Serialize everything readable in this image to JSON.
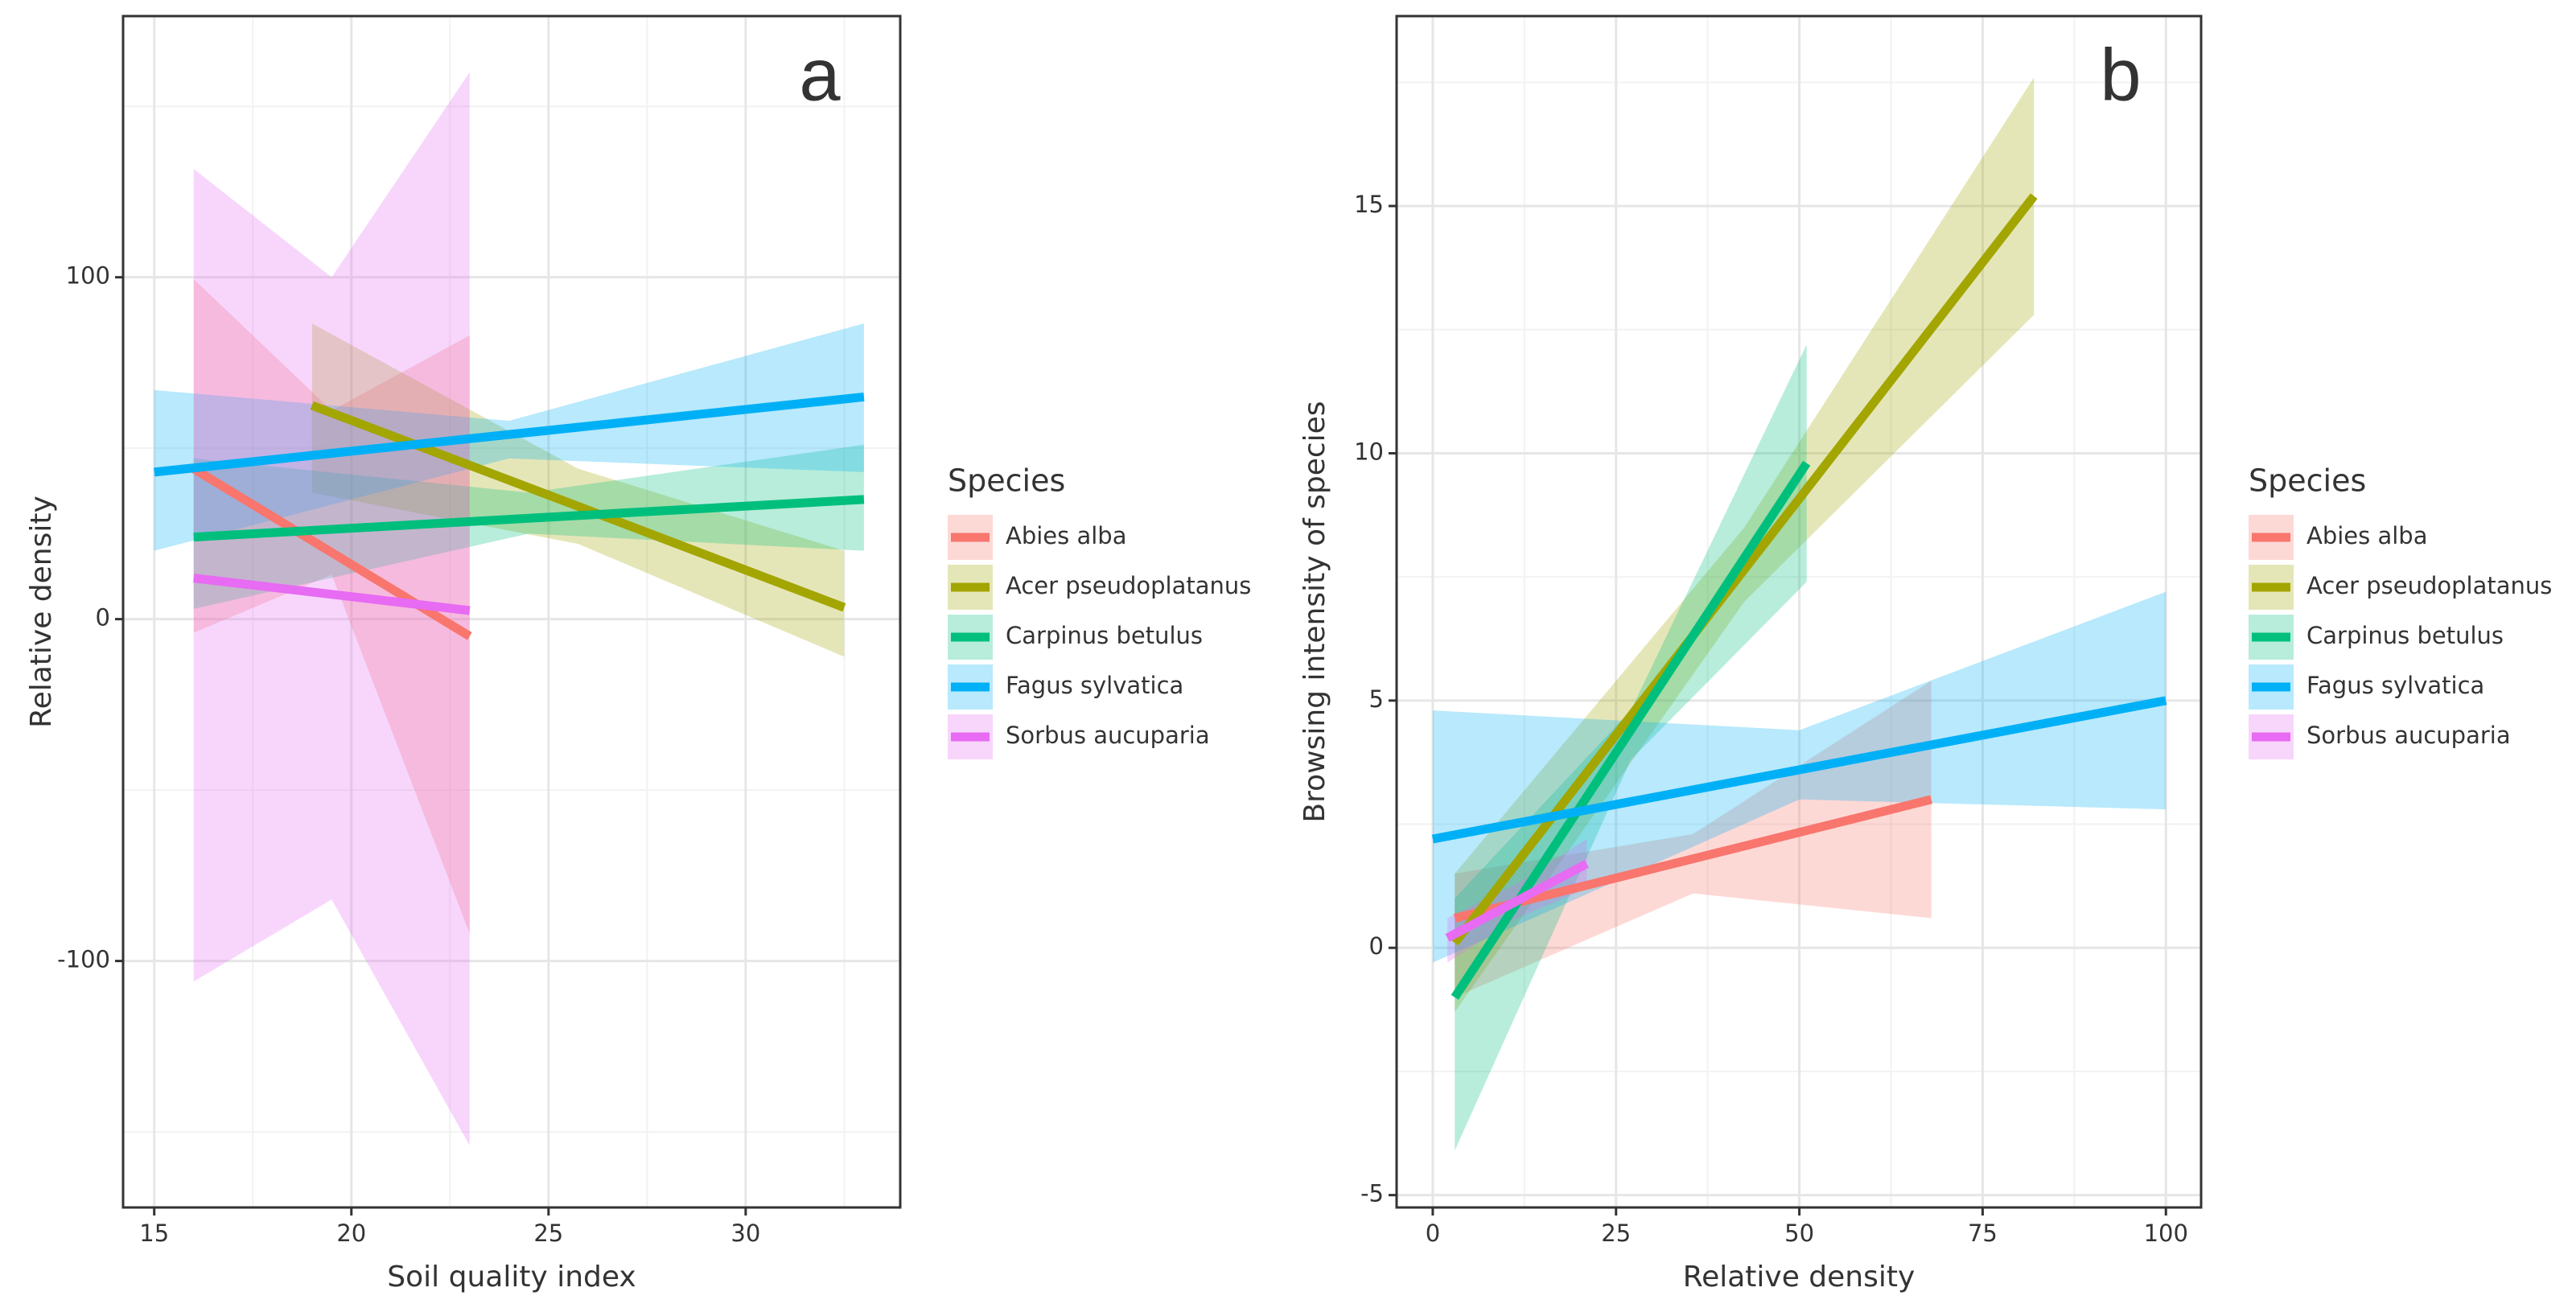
{
  "chart_data": [
    {
      "type": "line",
      "title": "a",
      "x_label": "Soil quality index",
      "y_label": "Relative density",
      "legend_title": "Species",
      "xlim": [
        14.21,
        33.92
      ],
      "ylim": [
        -172.1,
        176.4
      ],
      "xticks": [
        15,
        20,
        25,
        30
      ],
      "yticks": [
        -100,
        0,
        100
      ],
      "x_minor_grid": [
        17.5,
        22.5,
        27.5,
        32.5
      ],
      "y_minor_grid": [
        -150,
        -50,
        50,
        150
      ],
      "grid": true,
      "series": [
        {
          "name": "Abies alba",
          "color": "#F8766D",
          "x": [
            16,
            19.5,
            23
          ],
          "values": [
            44,
            19.5,
            -5
          ],
          "lower": [
            -4,
            13,
            -92
          ],
          "upper": [
            99.5,
            61,
            83
          ]
        },
        {
          "name": "Acer pseudoplatanus",
          "color": "#A3A500",
          "x": [
            19,
            25.75,
            32.5
          ],
          "values": [
            62.5,
            33,
            3.4
          ],
          "lower": [
            37,
            22,
            -11
          ],
          "upper": [
            86.5,
            44,
            20
          ]
        },
        {
          "name": "Carpinus betulus",
          "color": "#00BF7D",
          "x": [
            16,
            24.5,
            33
          ],
          "values": [
            24,
            29.5,
            35
          ],
          "lower": [
            3,
            25,
            20
          ],
          "upper": [
            47,
            37,
            51
          ]
        },
        {
          "name": "Fagus sylvatica",
          "color": "#00B0F6",
          "x": [
            15,
            24,
            33
          ],
          "values": [
            43,
            54,
            65
          ],
          "lower": [
            20,
            47,
            43
          ],
          "upper": [
            67,
            58,
            86.5
          ]
        },
        {
          "name": "Sorbus aucuparia",
          "color": "#E76BF3",
          "x": [
            16,
            19.5,
            23
          ],
          "values": [
            12,
            7.25,
            2.5
          ],
          "lower": [
            -106,
            -82,
            -154
          ],
          "upper": [
            131.7,
            100,
            160
          ]
        }
      ]
    },
    {
      "type": "line",
      "title": "b",
      "x_label": "Relative density",
      "y_label": "Browsing intensity of species",
      "legend_title": "Species",
      "xlim": [
        -4.93,
        104.8
      ],
      "ylim": [
        -5.25,
        18.84
      ],
      "xticks": [
        0,
        25,
        50,
        75,
        100
      ],
      "yticks": [
        -5,
        0,
        5,
        10,
        15
      ],
      "x_minor_grid": [
        12.5,
        37.5,
        62.5,
        87.5
      ],
      "y_minor_grid": [
        -2.5,
        2.5,
        7.5,
        12.5,
        17.5
      ],
      "grid": true,
      "series": [
        {
          "name": "Abies alba",
          "color": "#F8766D",
          "x": [
            3,
            35.5,
            68
          ],
          "values": [
            0.6,
            1.8,
            3.0
          ],
          "lower": [
            -1.0,
            1.1,
            0.6
          ],
          "upper": [
            1.5,
            2.3,
            5.4
          ]
        },
        {
          "name": "Acer pseudoplatanus",
          "color": "#A3A500",
          "x": [
            3,
            42.5,
            82
          ],
          "values": [
            0.1,
            7.65,
            15.2
          ],
          "lower": [
            -1.3,
            7.0,
            12.8
          ],
          "upper": [
            1.5,
            8.5,
            17.6
          ]
        },
        {
          "name": "Carpinus betulus",
          "color": "#00BF7D",
          "x": [
            3,
            27,
            51
          ],
          "values": [
            -1,
            4.4,
            9.8
          ],
          "lower": [
            -4.1,
            3.8,
            7.4
          ],
          "upper": [
            1.0,
            4.8,
            12.2
          ]
        },
        {
          "name": "Fagus sylvatica",
          "color": "#00B0F6",
          "x": [
            0,
            50,
            100
          ],
          "values": [
            2.2,
            3.6,
            5.0
          ],
          "lower": [
            -0.3,
            3.0,
            2.8
          ],
          "upper": [
            4.8,
            4.4,
            7.2
          ]
        },
        {
          "name": "Sorbus aucuparia",
          "color": "#E76BF3",
          "x": [
            2,
            11.5,
            21
          ],
          "values": [
            0.2,
            0.95,
            1.7
          ],
          "lower": [
            -0.3,
            0.6,
            1.2
          ],
          "upper": [
            0.6,
            1.3,
            2.2
          ]
        }
      ]
    }
  ]
}
